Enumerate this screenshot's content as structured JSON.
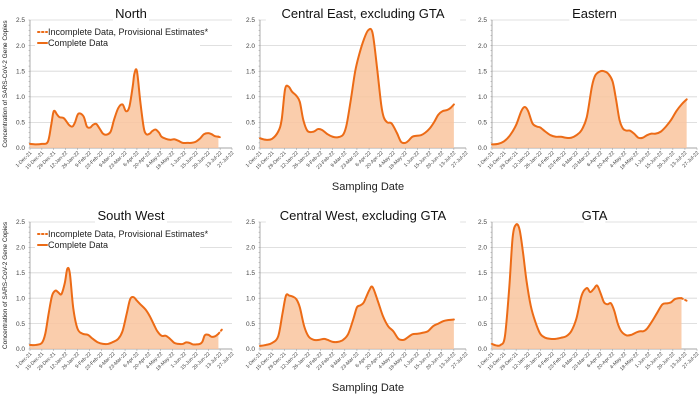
{
  "figure": {
    "shared_xlabel": "Sampling Date",
    "shared_ylabel": "Concentration of SARS-CoV-2 Gene Copies",
    "legend": {
      "incomplete_label": "Incomplete Data, Provisional Estimates*",
      "complete_label": "Complete Data"
    },
    "colors": {
      "line": "#ec6b16",
      "fill": "#f9c49e"
    }
  },
  "chart_data": [
    {
      "type": "area",
      "title": "North",
      "xlabel": "Sampling Date",
      "ylabel": "Concentration of SARS-CoV-2 Gene Copies",
      "ylim": [
        0,
        2.5
      ],
      "yticks": [
        "0.0",
        "0.5",
        "1.0",
        "1.5",
        "2.0",
        "2.5"
      ],
      "xticks": [
        "1-Dec-21",
        "15-Dec-21",
        "29-Dec-21",
        "12-Jan-22",
        "26-Jan-22",
        "9-Feb-22",
        "23-Feb-22",
        "9-Mar-22",
        "23-Mar-22",
        "6-Apr-22",
        "20-Apr-22",
        "4-May-22",
        "18-May-22",
        "1-Jun-22",
        "15-Jun-22",
        "29-Jun-22",
        "13-Jul-22",
        "27-Jul-22"
      ],
      "grid": true,
      "legend": "top-left",
      "show_legend": true,
      "show_ylabel": true,
      "show_xlabel": false,
      "series": [
        {
          "name": "Complete Data",
          "x_days": [
            0,
            7,
            14,
            21,
            25,
            28,
            32,
            35,
            40,
            46,
            50,
            53,
            57,
            63,
            67,
            71,
            74,
            78,
            82,
            86,
            90,
            95,
            99,
            104,
            109,
            113,
            117,
            121,
            123,
            126,
            130,
            134,
            137,
            141,
            144,
            148,
            152,
            155,
            160,
            165,
            170,
            175,
            180,
            185,
            190,
            195,
            200,
            205,
            210,
            214,
            218,
            222
          ],
          "values": [
            0.08,
            0.07,
            0.08,
            0.12,
            0.45,
            0.72,
            0.65,
            0.6,
            0.58,
            0.45,
            0.42,
            0.5,
            0.67,
            0.62,
            0.42,
            0.4,
            0.45,
            0.47,
            0.38,
            0.28,
            0.26,
            0.32,
            0.55,
            0.78,
            0.85,
            0.72,
            0.8,
            1.2,
            1.45,
            1.5,
            0.9,
            0.4,
            0.27,
            0.28,
            0.33,
            0.36,
            0.3,
            0.22,
            0.18,
            0.16,
            0.17,
            0.14,
            0.1,
            0.1,
            0.1,
            0.12,
            0.18,
            0.27,
            0.29,
            0.27,
            0.23,
            0.22
          ]
        },
        {
          "name": "Incomplete Data, Provisional Estimates*",
          "x_days": [
            222,
            226
          ],
          "values": [
            0.22,
            0.2
          ]
        }
      ]
    },
    {
      "type": "area",
      "title": "Central East, excluding GTA",
      "ylim": [
        0,
        2.5
      ],
      "yticks": [
        "0.0",
        "0.5",
        "1.0",
        "1.5",
        "2.0",
        "2.5"
      ],
      "xticks": [
        "1-Dec-21",
        "15-Dec-21",
        "29-Dec-21",
        "12-Jan-22",
        "26-Jan-22",
        "9-Feb-22",
        "23-Feb-22",
        "9-Mar-22",
        "23-Mar-22",
        "6-Apr-22",
        "20-Apr-22",
        "4-May-22",
        "18-May-22",
        "1-Jun-22",
        "15-Jun-22",
        "29-Jun-22",
        "13-Jul-22",
        "27-Jul-22"
      ],
      "grid": true,
      "show_legend": false,
      "show_ylabel": false,
      "show_xlabel": true,
      "series": [
        {
          "name": "Complete Data",
          "x_days": [
            0,
            7,
            14,
            21,
            25,
            29,
            33,
            37,
            42,
            46,
            50,
            55,
            62,
            67,
            72,
            78,
            84,
            90,
            96,
            100,
            105,
            110,
            115,
            120,
            125,
            130,
            135,
            140,
            143,
            147,
            152,
            158,
            163,
            168,
            172,
            176,
            181,
            186,
            191,
            196,
            201,
            206,
            211,
            216,
            220,
            224
          ],
          "values": [
            0.19,
            0.16,
            0.18,
            0.32,
            0.55,
            1.15,
            1.2,
            1.1,
            1.02,
            0.9,
            0.55,
            0.33,
            0.32,
            0.37,
            0.35,
            0.27,
            0.22,
            0.21,
            0.26,
            0.45,
            0.95,
            1.5,
            1.85,
            2.12,
            2.3,
            2.25,
            1.6,
            0.85,
            0.6,
            0.5,
            0.48,
            0.3,
            0.12,
            0.1,
            0.15,
            0.22,
            0.24,
            0.25,
            0.3,
            0.38,
            0.5,
            0.65,
            0.72,
            0.74,
            0.78,
            0.85
          ]
        }
      ]
    },
    {
      "type": "area",
      "title": "Eastern",
      "ylim": [
        0,
        2.5
      ],
      "yticks": [
        "0.0",
        "0.5",
        "1.0",
        "1.5",
        "2.0",
        "2.5"
      ],
      "xticks": [
        "1-Dec-21",
        "15-Dec-21",
        "29-Dec-21",
        "12-Jan-22",
        "26-Jan-22",
        "9-Feb-22",
        "23-Feb-22",
        "9-Mar-22",
        "23-Mar-22",
        "6-Apr-22",
        "20-Apr-22",
        "4-May-22",
        "18-May-22",
        "1-Jun-22",
        "15-Jun-22",
        "29-Jun-22",
        "13-Jul-22",
        "27-Jul-22"
      ],
      "grid": true,
      "show_legend": false,
      "show_ylabel": false,
      "show_xlabel": false,
      "series": [
        {
          "name": "Complete Data",
          "x_days": [
            0,
            7,
            14,
            21,
            28,
            34,
            38,
            42,
            47,
            52,
            56,
            62,
            68,
            74,
            80,
            86,
            92,
            98,
            104,
            110,
            116,
            120,
            126,
            130,
            135,
            140,
            144,
            148,
            152,
            156,
            160,
            165,
            170,
            175,
            180,
            185,
            190,
            196,
            202,
            208,
            214,
            220,
            226
          ],
          "values": [
            0.07,
            0.08,
            0.13,
            0.25,
            0.45,
            0.72,
            0.8,
            0.72,
            0.48,
            0.42,
            0.4,
            0.32,
            0.25,
            0.22,
            0.22,
            0.2,
            0.2,
            0.25,
            0.35,
            0.6,
            1.2,
            1.42,
            1.5,
            1.5,
            1.45,
            1.3,
            0.95,
            0.55,
            0.38,
            0.34,
            0.34,
            0.28,
            0.2,
            0.2,
            0.25,
            0.28,
            0.28,
            0.32,
            0.42,
            0.55,
            0.72,
            0.85,
            0.95
          ]
        }
      ]
    },
    {
      "type": "area",
      "title": "South West",
      "xlabel": "Sampling Date",
      "ylabel": "Concentration of SARS-CoV-2 Gene Copies",
      "ylim": [
        0,
        2.5
      ],
      "yticks": [
        "0.0",
        "0.5",
        "1.0",
        "1.5",
        "2.0",
        "2.5"
      ],
      "xticks": [
        "1-Dec-21",
        "15-Dec-21",
        "29-Dec-21",
        "12-Jan-22",
        "26-Jan-22",
        "9-Feb-22",
        "23-Feb-22",
        "9-Mar-22",
        "23-Mar-22",
        "6-Apr-22",
        "20-Apr-22",
        "4-May-22",
        "18-May-22",
        "1-Jun-22",
        "15-Jun-22",
        "29-Jun-22",
        "13-Jul-22",
        "27-Jul-22"
      ],
      "grid": true,
      "legend": "top-left",
      "show_legend": true,
      "show_ylabel": true,
      "show_xlabel": false,
      "series": [
        {
          "name": "Complete Data",
          "x_days": [
            0,
            7,
            14,
            18,
            22,
            26,
            30,
            33,
            37,
            41,
            44,
            47,
            51,
            56,
            62,
            68,
            74,
            80,
            86,
            92,
            98,
            104,
            109,
            114,
            118,
            122,
            126,
            130,
            136,
            141,
            146,
            150,
            155,
            160,
            165,
            170,
            175,
            180,
            184,
            188,
            192,
            196,
            200,
            203,
            206,
            210,
            214,
            218,
            222
          ],
          "values": [
            0.08,
            0.08,
            0.12,
            0.3,
            0.7,
            1.05,
            1.15,
            1.12,
            1.08,
            1.3,
            1.58,
            1.48,
            0.8,
            0.4,
            0.3,
            0.28,
            0.2,
            0.13,
            0.1,
            0.1,
            0.14,
            0.2,
            0.35,
            0.7,
            0.98,
            1.02,
            0.95,
            0.88,
            0.78,
            0.65,
            0.48,
            0.35,
            0.26,
            0.26,
            0.2,
            0.12,
            0.1,
            0.1,
            0.13,
            0.12,
            0.09,
            0.09,
            0.1,
            0.14,
            0.27,
            0.28,
            0.24,
            0.25,
            0.3
          ]
        },
        {
          "name": "Incomplete Data, Provisional Estimates*",
          "x_days": [
            222,
            226
          ],
          "values": [
            0.3,
            0.38
          ]
        }
      ]
    },
    {
      "type": "area",
      "title": "Central West, excluding GTA",
      "ylim": [
        0,
        2.5
      ],
      "yticks": [
        "0.0",
        "0.5",
        "1.0",
        "1.5",
        "2.0",
        "2.5"
      ],
      "xticks": [
        "1-Dec-21",
        "15-Dec-21",
        "29-Dec-21",
        "12-Jan-22",
        "26-Jan-22",
        "9-Feb-22",
        "23-Feb-22",
        "9-Mar-22",
        "23-Mar-22",
        "6-Apr-22",
        "20-Apr-22",
        "4-May-22",
        "18-May-22",
        "1-Jun-22",
        "15-Jun-22",
        "29-Jun-22",
        "13-Jul-22",
        "27-Jul-22"
      ],
      "grid": true,
      "show_legend": false,
      "show_ylabel": false,
      "show_xlabel": true,
      "series": [
        {
          "name": "Complete Data",
          "x_days": [
            0,
            7,
            14,
            21,
            26,
            30,
            34,
            38,
            42,
            46,
            51,
            56,
            62,
            68,
            74,
            78,
            84,
            90,
            96,
            102,
            108,
            112,
            116,
            120,
            126,
            130,
            136,
            142,
            148,
            154,
            160,
            166,
            170,
            176,
            182,
            188,
            194,
            200,
            206,
            212,
            218,
            224
          ],
          "values": [
            0.06,
            0.08,
            0.12,
            0.25,
            0.7,
            1.05,
            1.05,
            1.03,
            0.98,
            0.82,
            0.45,
            0.25,
            0.18,
            0.18,
            0.2,
            0.18,
            0.14,
            0.14,
            0.18,
            0.3,
            0.6,
            0.82,
            0.86,
            0.92,
            1.15,
            1.22,
            0.95,
            0.65,
            0.45,
            0.35,
            0.2,
            0.18,
            0.22,
            0.29,
            0.3,
            0.32,
            0.35,
            0.45,
            0.5,
            0.55,
            0.57,
            0.58
          ]
        }
      ]
    },
    {
      "type": "area",
      "title": "GTA",
      "ylim": [
        0,
        2.5
      ],
      "yticks": [
        "0.0",
        "0.5",
        "1.0",
        "1.5",
        "2.0",
        "2.5"
      ],
      "xticks": [
        "1-Dec-21",
        "15-Dec-21",
        "29-Dec-21",
        "12-Jan-22",
        "26-Jan-22",
        "9-Feb-22",
        "23-Feb-22",
        "9-Mar-22",
        "23-Mar-22",
        "6-Apr-22",
        "20-Apr-22",
        "4-May-22",
        "18-May-22",
        "1-Jun-22",
        "15-Jun-22",
        "29-Jun-22",
        "13-Jul-22",
        "27-Jul-22"
      ],
      "grid": true,
      "show_legend": false,
      "show_ylabel": false,
      "show_xlabel": false,
      "series": [
        {
          "name": "Complete Data",
          "x_days": [
            0,
            5,
            10,
            15,
            20,
            24,
            28,
            32,
            36,
            40,
            45,
            50,
            56,
            62,
            68,
            74,
            80,
            86,
            92,
            98,
            104,
            110,
            114,
            118,
            122,
            126,
            130,
            134,
            138,
            142,
            146,
            150,
            156,
            162,
            168,
            172,
            176,
            180,
            186,
            192,
            198,
            204,
            208,
            212,
            216,
            220
          ],
          "values": [
            0.1,
            0.07,
            0.08,
            0.25,
            1.2,
            2.2,
            2.45,
            2.35,
            1.9,
            1.35,
            0.85,
            0.55,
            0.3,
            0.22,
            0.2,
            0.2,
            0.22,
            0.25,
            0.35,
            0.6,
            1.05,
            1.2,
            1.12,
            1.18,
            1.25,
            1.1,
            0.92,
            0.88,
            0.9,
            0.75,
            0.5,
            0.35,
            0.27,
            0.28,
            0.33,
            0.35,
            0.35,
            0.4,
            0.55,
            0.72,
            0.88,
            0.9,
            0.92,
            0.98,
            1.0,
            1.0
          ]
        },
        {
          "name": "Incomplete Data, Provisional Estimates*",
          "x_days": [
            220,
            226
          ],
          "values": [
            1.0,
            0.95
          ]
        }
      ]
    }
  ]
}
